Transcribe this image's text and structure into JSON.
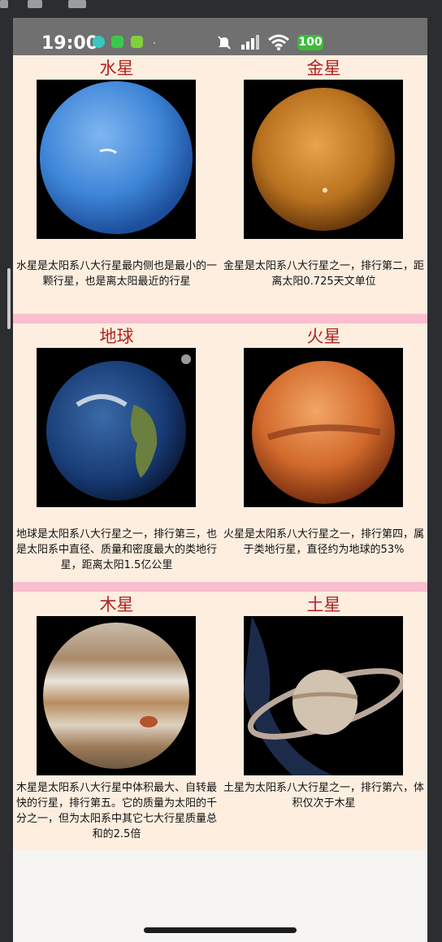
{
  "status_bar": {
    "time": "19:00",
    "battery": "100",
    "dot": "·"
  },
  "planets": [
    {
      "name": "水星",
      "desc": "水星是太阳系八大行星最内侧也是最小的一颗行星，也是离太阳最近的行星"
    },
    {
      "name": "金星",
      "desc": "金星是太阳系八大行星之一，排行第二，距离太阳0.725天文单位"
    },
    {
      "name": "地球",
      "desc": "地球是太阳系八大行星之一，排行第三，也是太阳系中直径、质量和密度最大的类地行星，距离太阳1.5亿公里"
    },
    {
      "name": "火星",
      "desc": "火星是太阳系八大行星之一，排行第四，属于类地行星，直径约为地球的53%"
    },
    {
      "name": "木星",
      "desc": "木星是太阳系八大行星中体积最大、自转最快的行星，排行第五。它的质量为太阳的千分之一，但为太阳系中其它七大行星质量总和的2.5倍"
    },
    {
      "name": "土星",
      "desc": "土星为太阳系八大行星之一，排行第六，体积仅次于木星"
    }
  ]
}
